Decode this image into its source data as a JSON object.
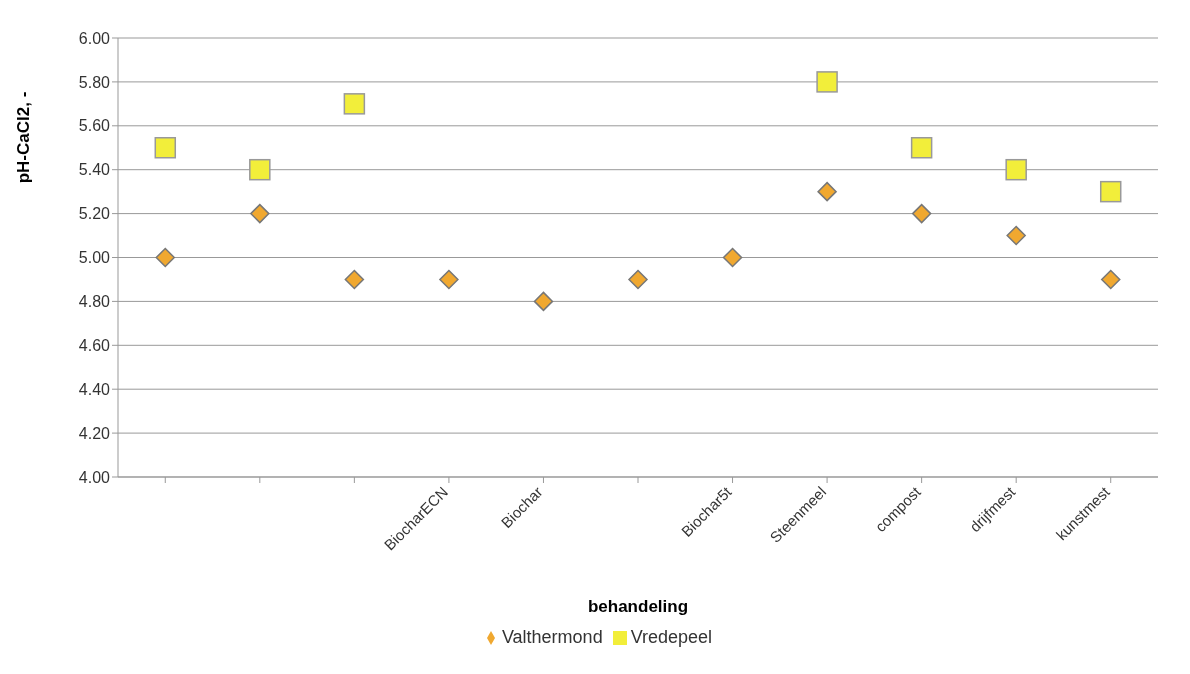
{
  "chart_data": {
    "type": "scatter",
    "xlabel": "behandeling",
    "ylabel": "pH-CaCl2, -",
    "categories": [
      null,
      null,
      null,
      "BiocharECN",
      "Biochar",
      null,
      "Biochar5t",
      "Steenmeel",
      "compost",
      "drijfmest",
      "kunstmest"
    ],
    "series": [
      {
        "name": "Valthermond",
        "color": "#f0a830",
        "marker": "diamond",
        "values": [
          5.0,
          5.2,
          4.9,
          4.9,
          4.8,
          4.9,
          5.0,
          5.3,
          5.2,
          5.1,
          4.9
        ]
      },
      {
        "name": "Vredepeel",
        "color": "#f2ee3a",
        "marker": "square",
        "values": [
          5.5,
          5.4,
          5.7,
          null,
          null,
          null,
          null,
          5.8,
          5.5,
          5.4,
          5.3
        ]
      }
    ],
    "ylim": [
      4,
      6
    ],
    "yticks": [
      {
        "value": 4,
        "label": "4.00"
      },
      {
        "value": 4.2,
        "label": "4.20"
      },
      {
        "value": 4.4,
        "label": "4.40"
      },
      {
        "value": 4.6,
        "label": "4.60"
      },
      {
        "value": 4.8,
        "label": "4.80"
      },
      {
        "value": 5,
        "label": "5.00"
      },
      {
        "value": 5.2,
        "label": "5.20"
      },
      {
        "value": 5.4,
        "label": "5.40"
      },
      {
        "value": 5.6,
        "label": "5.60"
      },
      {
        "value": 5.8,
        "label": "5.80"
      },
      {
        "value": 6,
        "label": "6.00"
      }
    ],
    "grid": "y",
    "legend": "bottom"
  }
}
